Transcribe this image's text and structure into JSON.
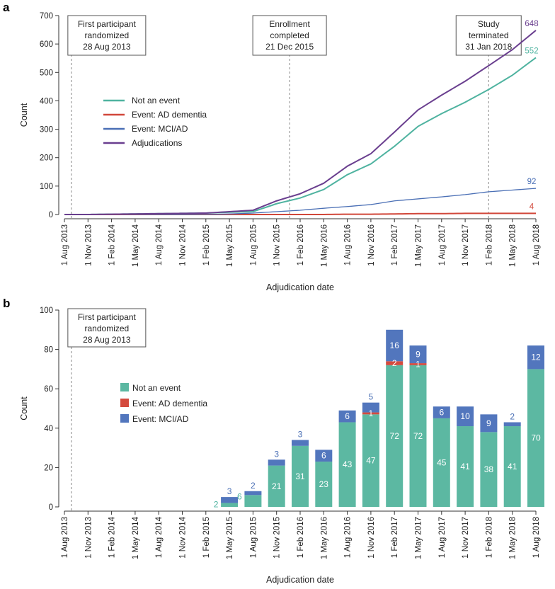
{
  "colors": {
    "not_event": "#4fb3a0",
    "ad_dementia": "#d1473a",
    "mci_ad": "#4a6fb5",
    "adjudications": "#6a3f8f",
    "bar_not_event": "#5cb8a2",
    "bar_ad": "#d44a3e",
    "bar_mci": "#5276bd"
  },
  "dates": [
    "1 Aug 2013",
    "1 Nov 2013",
    "1 Feb 2014",
    "1 May 2014",
    "1 Aug 2014",
    "1 Nov 2014",
    "1 Feb 2015",
    "1 May 2015",
    "1 Aug 2015",
    "1 Nov 2015",
    "1 Feb 2016",
    "1 May 2016",
    "1 Aug 2016",
    "1 Nov 2016",
    "1 Feb 2017",
    "1 May 2017",
    "1 Aug 2017",
    "1 Nov 2017",
    "1 Feb 2018",
    "1 May 2018",
    "1 Aug 2018"
  ],
  "chart_data": [
    {
      "panel": "a",
      "type": "line",
      "xlabel": "Adjudication date",
      "ylabel": "Count",
      "ylim": [
        0,
        700
      ],
      "yticks": [
        0,
        100,
        200,
        300,
        400,
        500,
        600,
        700
      ],
      "grid": false,
      "legend_position": "left-middle",
      "x": [
        "1 Aug 2013",
        "1 Nov 2013",
        "1 Feb 2014",
        "1 May 2014",
        "1 Aug 2014",
        "1 Nov 2014",
        "1 Feb 2015",
        "1 May 2015",
        "1 Aug 2015",
        "1 Nov 2015",
        "1 Feb 2016",
        "1 May 2016",
        "1 Aug 2016",
        "1 Nov 2016",
        "1 Feb 2017",
        "1 May 2017",
        "1 Aug 2017",
        "1 Nov 2017",
        "1 Feb 2018",
        "1 May 2018",
        "1 Aug 2018"
      ],
      "series": [
        {
          "name": "Not an event",
          "color_key": "not_event",
          "values": [
            0,
            0,
            1,
            2,
            3,
            4,
            5,
            8,
            10,
            38,
            58,
            88,
            140,
            178,
            240,
            310,
            355,
            395,
            440,
            490,
            552
          ],
          "end_label": "552"
        },
        {
          "name": "Event: AD dementia",
          "color_key": "ad_dementia",
          "values": [
            0,
            0,
            0,
            0,
            0,
            0,
            0,
            0,
            0,
            0,
            0,
            0,
            1,
            1,
            2,
            3,
            3,
            4,
            4,
            4,
            4
          ],
          "end_label": "4"
        },
        {
          "name": "Event: MCI/AD",
          "color_key": "mci_ad",
          "values": [
            0,
            0,
            0,
            0,
            0,
            0,
            0,
            2,
            5,
            10,
            15,
            22,
            28,
            35,
            48,
            55,
            62,
            70,
            80,
            86,
            92
          ],
          "end_label": "92"
        },
        {
          "name": "Adjudications",
          "color_key": "adjudications",
          "values": [
            0,
            0,
            1,
            2,
            3,
            4,
            5,
            10,
            15,
            48,
            73,
            110,
            170,
            214,
            290,
            368,
            420,
            469,
            524,
            580,
            648
          ],
          "end_label": "648"
        }
      ],
      "annotations": [
        {
          "lines": [
            "First participant",
            "randomized",
            "28 Aug 2013"
          ],
          "x_value": "28 Aug 2013"
        },
        {
          "lines": [
            "Enrollment",
            "completed",
            "21 Dec 2015"
          ],
          "x_value": "21 Dec 2015"
        },
        {
          "lines": [
            "Study",
            "terminated",
            "31 Jan 2018"
          ],
          "x_value": "31 Jan 2018"
        }
      ]
    },
    {
      "panel": "b",
      "type": "bar",
      "stacked": true,
      "xlabel": "Adjudication date",
      "ylabel": "Count",
      "ylim": [
        0,
        100
      ],
      "yticks": [
        0,
        20,
        40,
        60,
        80,
        100
      ],
      "grid": false,
      "legend_position": "left-middle",
      "categories": [
        "1 Aug 2013",
        "1 Nov 2013",
        "1 Feb 2014",
        "1 May 2014",
        "1 Aug 2014",
        "1 Nov 2014",
        "1 Feb 2015",
        "1 May 2015",
        "1 Aug 2015",
        "1 Nov 2015",
        "1 Feb 2016",
        "1 May 2016",
        "1 Aug 2016",
        "1 Nov 2016",
        "1 Feb 2017",
        "1 May 2017",
        "1 Aug 2017",
        "1 Nov 2017",
        "1 Feb 2018",
        "1 May 2018",
        "1 Aug 2018"
      ],
      "series": [
        {
          "name": "Not an event",
          "color_key": "bar_not_event",
          "values": [
            0,
            0,
            0,
            0,
            0,
            0,
            0,
            2,
            6,
            21,
            31,
            23,
            43,
            47,
            72,
            72,
            45,
            41,
            38,
            41,
            70
          ]
        },
        {
          "name": "Event: AD dementia",
          "color_key": "bar_ad",
          "values": [
            0,
            0,
            0,
            0,
            0,
            0,
            0,
            0,
            0,
            0,
            0,
            0,
            0,
            1,
            2,
            1,
            0,
            0,
            0,
            0,
            0
          ]
        },
        {
          "name": "Event: MCI/AD",
          "color_key": "bar_mci",
          "values": [
            0,
            0,
            0,
            0,
            0,
            0,
            0,
            3,
            2,
            3,
            3,
            6,
            6,
            5,
            16,
            9,
            6,
            10,
            9,
            2,
            12
          ]
        }
      ],
      "annotations": [
        {
          "lines": [
            "First participant",
            "randomized",
            "28 Aug 2013"
          ],
          "x_value": "28 Aug 2013"
        }
      ]
    }
  ],
  "panel_a_label": "a",
  "panel_b_label": "b"
}
